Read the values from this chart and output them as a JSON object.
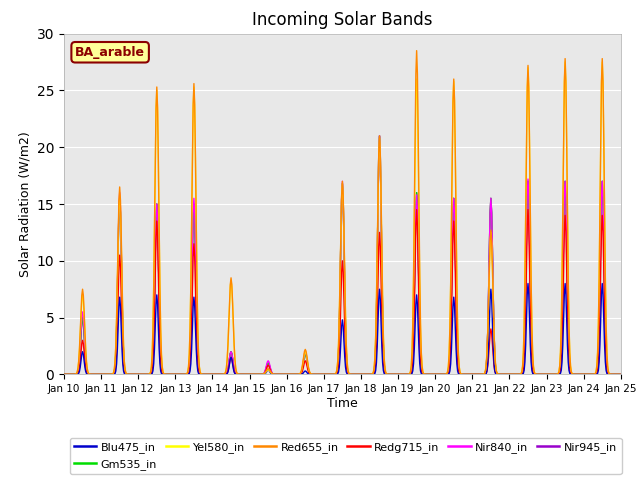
{
  "title": "Incoming Solar Bands",
  "xlabel": "Time",
  "ylabel": "Solar Radiation (W/m2)",
  "annotation": "BA_arable",
  "ylim": [
    0,
    30
  ],
  "y_ticks": [
    0,
    5,
    10,
    15,
    20,
    25,
    30
  ],
  "x_tick_labels": [
    "Jan 10",
    "Jan 11",
    "Jan 12",
    "Jan 13",
    "Jan 14",
    "Jan 15",
    "Jan 16",
    "Jan 17",
    "Jan 18",
    "Jan 19",
    "Jan 20",
    "Jan 21",
    "Jan 22",
    "Jan 23",
    "Jan 24",
    "Jan 25"
  ],
  "series_colors": {
    "Blu475_in": "#0000cc",
    "Gm535_in": "#00dd00",
    "Yel580_in": "#ffff00",
    "Red655_in": "#ff8800",
    "Redg715_in": "#ff0000",
    "Nir840_in": "#ff00ff",
    "Nir945_in": "#9900cc"
  },
  "background_color": "#e8e8e8",
  "fig_background": "#ffffff",
  "annotation_facecolor": "#ffff99",
  "annotation_edgecolor": "#8b0000",
  "annotation_textcolor": "#8b0000",
  "day_peaks": {
    "Red655_in": [
      7.5,
      16.5,
      25.3,
      25.6,
      8.5,
      0.5,
      2.2,
      17.0,
      21.0,
      28.5,
      26.0,
      12.7,
      27.2,
      27.8,
      27.8
    ],
    "Yel580_in": [
      7.0,
      15.8,
      25.0,
      25.3,
      8.3,
      0.4,
      2.0,
      16.8,
      20.8,
      26.0,
      25.8,
      12.5,
      27.0,
      27.5,
      27.5
    ],
    "Nir840_in": [
      5.5,
      16.0,
      15.0,
      15.5,
      2.0,
      1.2,
      2.0,
      17.0,
      21.0,
      15.8,
      15.5,
      15.5,
      17.2,
      17.0,
      17.0
    ],
    "Gm535_in": [
      5.0,
      15.5,
      15.0,
      15.0,
      2.0,
      1.0,
      1.8,
      16.8,
      21.0,
      16.0,
      15.5,
      15.5,
      17.0,
      17.0,
      17.0
    ],
    "Redg715_in": [
      3.0,
      10.5,
      13.5,
      11.5,
      1.5,
      0.8,
      1.2,
      10.0,
      12.5,
      14.5,
      13.5,
      4.0,
      14.5,
      14.0,
      14.0
    ],
    "Blu475_in": [
      2.0,
      6.8,
      7.0,
      6.8,
      1.5,
      0.4,
      0.3,
      4.8,
      7.5,
      7.0,
      6.8,
      7.5,
      8.0,
      8.0,
      8.0
    ],
    "Nir945_in": [
      5.0,
      15.5,
      15.0,
      15.0,
      2.0,
      1.0,
      1.8,
      16.8,
      21.0,
      16.0,
      15.5,
      15.5,
      17.0,
      17.0,
      17.0
    ]
  }
}
